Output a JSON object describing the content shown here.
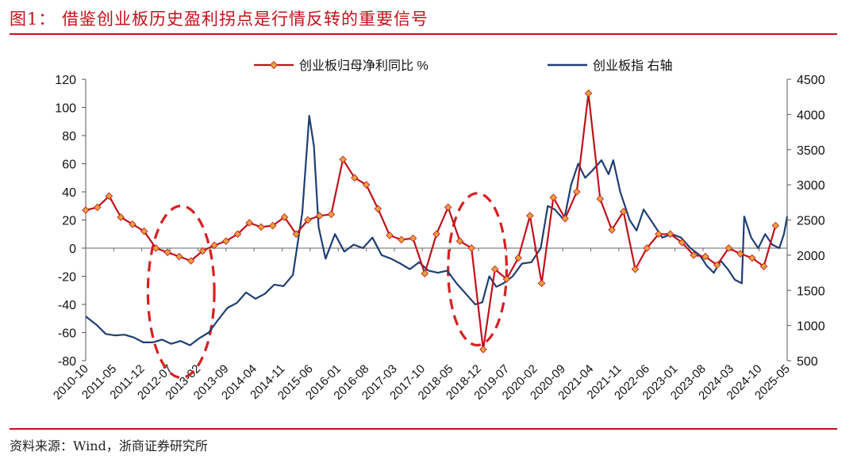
{
  "header": {
    "title": "图1：   借鉴创业板历史盈利拐点是行情反转的重要信号"
  },
  "footer": {
    "source": "资料来源：Wind，浙商证券研究所"
  },
  "colors": {
    "red": "#c0121b",
    "blue": "#1f3f73",
    "marker": "#e8a23c",
    "highlight": "#d62020"
  },
  "chart_data": {
    "type": "line",
    "legend_position": "top",
    "series": [
      {
        "name": "创业板归母净利同比 %",
        "axis": "left",
        "marker": "diamond",
        "points": [
          [
            2010.67,
            27
          ],
          [
            2010.92,
            29
          ],
          [
            2011.17,
            37
          ],
          [
            2011.42,
            22
          ],
          [
            2011.67,
            17
          ],
          [
            2011.92,
            12
          ],
          [
            2012.17,
            0
          ],
          [
            2012.42,
            -3
          ],
          [
            2012.67,
            -6
          ],
          [
            2012.92,
            -9
          ],
          [
            2013.17,
            -2
          ],
          [
            2013.42,
            2
          ],
          [
            2013.67,
            5
          ],
          [
            2013.92,
            10
          ],
          [
            2014.17,
            18
          ],
          [
            2014.42,
            15
          ],
          [
            2014.67,
            16
          ],
          [
            2014.92,
            22
          ],
          [
            2015.17,
            10
          ],
          [
            2015.42,
            20
          ],
          [
            2015.67,
            23
          ],
          [
            2015.92,
            24
          ],
          [
            2016.17,
            63
          ],
          [
            2016.42,
            50
          ],
          [
            2016.67,
            45
          ],
          [
            2016.92,
            28
          ],
          [
            2017.17,
            9
          ],
          [
            2017.42,
            6
          ],
          [
            2017.67,
            7
          ],
          [
            2017.92,
            -18
          ],
          [
            2018.17,
            10
          ],
          [
            2018.42,
            29
          ],
          [
            2018.67,
            5
          ],
          [
            2018.92,
            0
          ],
          [
            2019.17,
            -72
          ],
          [
            2019.42,
            -15
          ],
          [
            2019.67,
            -22
          ],
          [
            2019.92,
            -7
          ],
          [
            2020.17,
            23
          ],
          [
            2020.42,
            -25
          ],
          [
            2020.67,
            36
          ],
          [
            2020.92,
            21
          ],
          [
            2021.17,
            40
          ],
          [
            2021.42,
            110
          ],
          [
            2021.67,
            35
          ],
          [
            2021.92,
            13
          ],
          [
            2022.17,
            26
          ],
          [
            2022.42,
            -15
          ],
          [
            2022.67,
            0
          ],
          [
            2022.92,
            10
          ],
          [
            2023.17,
            10
          ],
          [
            2023.42,
            4
          ],
          [
            2023.67,
            -5
          ],
          [
            2023.92,
            -6
          ],
          [
            2024.17,
            -12
          ],
          [
            2024.42,
            0
          ],
          [
            2024.67,
            -4
          ],
          [
            2024.92,
            -7
          ],
          [
            2025.17,
            -13
          ],
          [
            2025.42,
            16
          ]
        ]
      },
      {
        "name": "创业板指 右轴",
        "axis": "right",
        "marker": "none",
        "points": [
          [
            2010.67,
            1130
          ],
          [
            2010.9,
            1010
          ],
          [
            2011.1,
            880
          ],
          [
            2011.3,
            860
          ],
          [
            2011.5,
            870
          ],
          [
            2011.7,
            830
          ],
          [
            2011.9,
            760
          ],
          [
            2012.1,
            760
          ],
          [
            2012.3,
            800
          ],
          [
            2012.5,
            740
          ],
          [
            2012.7,
            780
          ],
          [
            2012.9,
            720
          ],
          [
            2013.1,
            820
          ],
          [
            2013.3,
            900
          ],
          [
            2013.5,
            1080
          ],
          [
            2013.7,
            1250
          ],
          [
            2013.9,
            1320
          ],
          [
            2014.1,
            1470
          ],
          [
            2014.3,
            1380
          ],
          [
            2014.5,
            1450
          ],
          [
            2014.7,
            1580
          ],
          [
            2014.9,
            1560
          ],
          [
            2015.1,
            1720
          ],
          [
            2015.3,
            2600
          ],
          [
            2015.45,
            3980
          ],
          [
            2015.55,
            3550
          ],
          [
            2015.65,
            2400
          ],
          [
            2015.8,
            1950
          ],
          [
            2016.0,
            2300
          ],
          [
            2016.2,
            2050
          ],
          [
            2016.4,
            2150
          ],
          [
            2016.6,
            2100
          ],
          [
            2016.8,
            2250
          ],
          [
            2017.0,
            2000
          ],
          [
            2017.2,
            1950
          ],
          [
            2017.4,
            1880
          ],
          [
            2017.6,
            1800
          ],
          [
            2017.8,
            1900
          ],
          [
            2018.0,
            1780
          ],
          [
            2018.2,
            1750
          ],
          [
            2018.4,
            1780
          ],
          [
            2018.6,
            1600
          ],
          [
            2018.8,
            1450
          ],
          [
            2019.0,
            1300
          ],
          [
            2019.15,
            1330
          ],
          [
            2019.3,
            1700
          ],
          [
            2019.45,
            1550
          ],
          [
            2019.6,
            1600
          ],
          [
            2019.8,
            1700
          ],
          [
            2020.0,
            1880
          ],
          [
            2020.2,
            1900
          ],
          [
            2020.4,
            2100
          ],
          [
            2020.55,
            2700
          ],
          [
            2020.7,
            2650
          ],
          [
            2020.9,
            2500
          ],
          [
            2021.05,
            3000
          ],
          [
            2021.2,
            3300
          ],
          [
            2021.35,
            3100
          ],
          [
            2021.5,
            3200
          ],
          [
            2021.7,
            3350
          ],
          [
            2021.85,
            3150
          ],
          [
            2021.95,
            3350
          ],
          [
            2022.1,
            2900
          ],
          [
            2022.3,
            2500
          ],
          [
            2022.45,
            2350
          ],
          [
            2022.6,
            2650
          ],
          [
            2022.8,
            2450
          ],
          [
            2023.0,
            2250
          ],
          [
            2023.2,
            2300
          ],
          [
            2023.4,
            2250
          ],
          [
            2023.6,
            2100
          ],
          [
            2023.8,
            2000
          ],
          [
            2023.95,
            1850
          ],
          [
            2024.1,
            1750
          ],
          [
            2024.25,
            1920
          ],
          [
            2024.4,
            1800
          ],
          [
            2024.55,
            1650
          ],
          [
            2024.7,
            1600
          ],
          [
            2024.75,
            2550
          ],
          [
            2024.9,
            2250
          ],
          [
            2025.05,
            2100
          ],
          [
            2025.2,
            2300
          ],
          [
            2025.35,
            2150
          ],
          [
            2025.5,
            2100
          ],
          [
            2025.6,
            2300
          ],
          [
            2025.67,
            2550
          ]
        ]
      }
    ],
    "x_ticks": [
      "2010-10",
      "2011-05",
      "2011-12",
      "2012-07",
      "2013-02",
      "2013-09",
      "2014-04",
      "2014-11",
      "2015-06",
      "2016-01",
      "2016-08",
      "2017-03",
      "2017-10",
      "2018-05",
      "2018-12",
      "2019-07",
      "2020-02",
      "2020-09",
      "2021-04",
      "2021-11",
      "2022-06",
      "2023-01",
      "2023-08",
      "2024-03",
      "2024-10",
      "2025-05"
    ],
    "xlim": [
      2010.67,
      2025.67
    ],
    "y_left_ticks": [
      120,
      100,
      80,
      60,
      40,
      20,
      0,
      -20,
      -40,
      -60,
      -80
    ],
    "y_left_lim": [
      -80,
      120
    ],
    "y_right_ticks": [
      4500,
      4000,
      3500,
      3000,
      2500,
      2000,
      1500,
      1000,
      500
    ],
    "y_right_lim": [
      500,
      4500
    ],
    "highlights": [
      {
        "name": "2012-2013 trough",
        "x_range": [
          2012.0,
          2013.42
        ],
        "y_range": [
          -92,
          30
        ]
      },
      {
        "name": "2018-2019 trough",
        "x_range": [
          2018.42,
          2019.67
        ],
        "y_range": [
          -69,
          39
        ]
      }
    ]
  }
}
